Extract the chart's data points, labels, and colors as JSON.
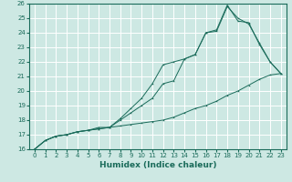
{
  "title": "",
  "xlabel": "Humidex (Indice chaleur)",
  "xlim": [
    -0.5,
    23.5
  ],
  "ylim": [
    16,
    26
  ],
  "yticks": [
    16,
    17,
    18,
    19,
    20,
    21,
    22,
    23,
    24,
    25,
    26
  ],
  "xticks": [
    0,
    1,
    2,
    3,
    4,
    5,
    6,
    7,
    8,
    9,
    10,
    11,
    12,
    13,
    14,
    15,
    16,
    17,
    18,
    19,
    20,
    21,
    22,
    23
  ],
  "bg_color": "#cde8e3",
  "line_color": "#1a6b5a",
  "grid_color": "#ffffff",
  "line1_x": [
    0,
    1,
    2,
    3,
    4,
    5,
    6,
    7,
    8,
    9,
    10,
    11,
    12,
    13,
    14,
    15,
    16,
    17,
    18,
    19,
    20,
    21,
    22,
    23
  ],
  "line1_y": [
    16.0,
    16.6,
    16.9,
    17.0,
    17.2,
    17.3,
    17.4,
    17.5,
    17.6,
    17.7,
    17.8,
    17.9,
    18.0,
    18.2,
    18.5,
    18.8,
    19.0,
    19.3,
    19.7,
    20.0,
    20.4,
    20.8,
    21.1,
    21.2
  ],
  "line2_x": [
    0,
    1,
    2,
    3,
    4,
    5,
    6,
    7,
    8,
    9,
    10,
    11,
    12,
    13,
    14,
    15,
    16,
    17,
    18,
    19,
    20,
    21,
    22,
    23
  ],
  "line2_y": [
    16.0,
    16.6,
    16.9,
    17.0,
    17.2,
    17.3,
    17.4,
    17.5,
    18.0,
    18.5,
    19.0,
    19.5,
    20.5,
    20.7,
    22.2,
    22.5,
    24.0,
    24.2,
    25.9,
    24.8,
    24.7,
    23.2,
    22.0,
    21.2
  ],
  "line3_x": [
    0,
    1,
    2,
    3,
    4,
    5,
    6,
    7,
    8,
    9,
    10,
    11,
    12,
    13,
    14,
    15,
    16,
    17,
    18,
    19,
    20,
    21,
    22,
    23
  ],
  "line3_y": [
    16.0,
    16.6,
    16.9,
    17.0,
    17.2,
    17.3,
    17.5,
    17.5,
    18.1,
    18.8,
    19.5,
    20.5,
    21.8,
    22.0,
    22.2,
    22.5,
    24.0,
    24.1,
    25.8,
    25.0,
    24.6,
    23.3,
    22.0,
    21.2
  ],
  "tick_fontsize": 5.0,
  "xlabel_fontsize": 6.5,
  "linewidth": 0.7,
  "markersize": 2.0
}
